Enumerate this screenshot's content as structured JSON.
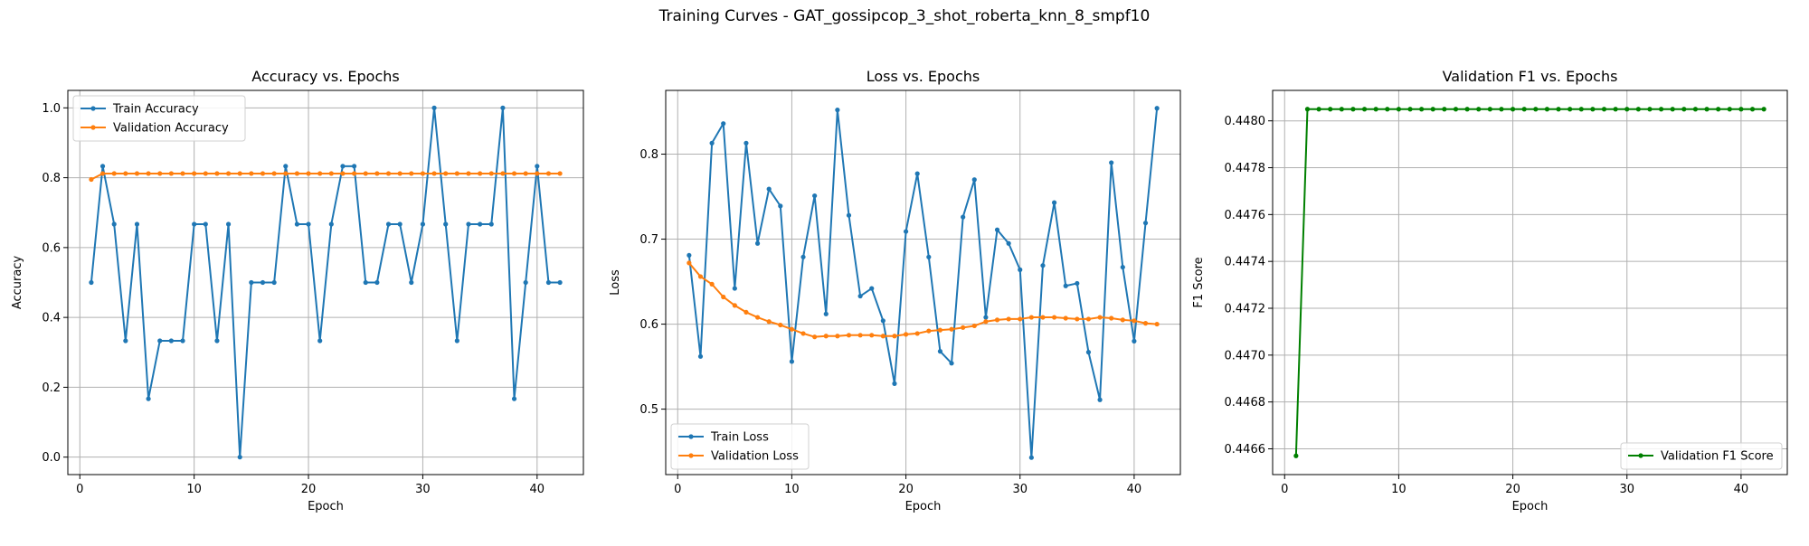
{
  "figure": {
    "suptitle": "Training Curves - GAT_gossipcop_3_shot_roberta_knn_8_smpf10"
  },
  "colors": {
    "train": "#1f77b4",
    "validation": "#ff7f0e",
    "f1": "#008000",
    "grid": "#b0b0b0"
  },
  "chart_data": [
    {
      "type": "line",
      "title": "Accuracy vs. Epochs",
      "xlabel": "Epoch",
      "ylabel": "Accuracy",
      "xlim": [
        -1.05,
        44.05
      ],
      "ylim": [
        -0.05,
        1.05
      ],
      "xticks": [
        0,
        10,
        20,
        30,
        40
      ],
      "yticks": [
        0.0,
        0.2,
        0.4,
        0.6,
        0.8,
        1.0
      ],
      "ytick_labels": [
        "0.0",
        "0.2",
        "0.4",
        "0.6",
        "0.8",
        "1.0"
      ],
      "grid": true,
      "legend": "upper-left",
      "x": [
        1,
        2,
        3,
        4,
        5,
        6,
        7,
        8,
        9,
        10,
        11,
        12,
        13,
        14,
        15,
        16,
        17,
        18,
        19,
        20,
        21,
        22,
        23,
        24,
        25,
        26,
        27,
        28,
        29,
        30,
        31,
        32,
        33,
        34,
        35,
        36,
        37,
        38,
        39,
        40,
        41,
        42
      ],
      "series": [
        {
          "name": "Train Accuracy",
          "color": "#1f77b4",
          "values": [
            0.5,
            0.833,
            0.667,
            0.333,
            0.667,
            0.167,
            0.333,
            0.333,
            0.333,
            0.667,
            0.667,
            0.333,
            0.667,
            0.0,
            0.5,
            0.5,
            0.5,
            0.833,
            0.667,
            0.667,
            0.333,
            0.667,
            0.833,
            0.833,
            0.5,
            0.5,
            0.667,
            0.667,
            0.5,
            0.667,
            1.0,
            0.667,
            0.333,
            0.667,
            0.667,
            0.667,
            1.0,
            0.167,
            0.5,
            0.833,
            0.5,
            0.5
          ]
        },
        {
          "name": "Validation Accuracy",
          "color": "#ff7f0e",
          "values": [
            0.795,
            0.812,
            0.812,
            0.812,
            0.812,
            0.812,
            0.812,
            0.812,
            0.812,
            0.812,
            0.812,
            0.812,
            0.812,
            0.812,
            0.812,
            0.812,
            0.812,
            0.812,
            0.812,
            0.812,
            0.812,
            0.812,
            0.812,
            0.812,
            0.812,
            0.812,
            0.812,
            0.812,
            0.812,
            0.812,
            0.812,
            0.812,
            0.812,
            0.812,
            0.812,
            0.812,
            0.812,
            0.812,
            0.812,
            0.812,
            0.812,
            0.812
          ]
        }
      ]
    },
    {
      "type": "line",
      "title": "Loss vs. Epochs",
      "xlabel": "Epoch",
      "ylabel": "Loss",
      "xlim": [
        -1.05,
        44.05
      ],
      "ylim": [
        0.423,
        0.875
      ],
      "xticks": [
        0,
        10,
        20,
        30,
        40
      ],
      "yticks": [
        0.5,
        0.6,
        0.7,
        0.8
      ],
      "ytick_labels": [
        "0.5",
        "0.6",
        "0.7",
        "0.8"
      ],
      "grid": true,
      "legend": "lower-left",
      "x": [
        1,
        2,
        3,
        4,
        5,
        6,
        7,
        8,
        9,
        10,
        11,
        12,
        13,
        14,
        15,
        16,
        17,
        18,
        19,
        20,
        21,
        22,
        23,
        24,
        25,
        26,
        27,
        28,
        29,
        30,
        31,
        32,
        33,
        34,
        35,
        36,
        37,
        38,
        39,
        40,
        41,
        42
      ],
      "series": [
        {
          "name": "Train Loss",
          "color": "#1f77b4",
          "values": [
            0.681,
            0.562,
            0.813,
            0.836,
            0.642,
            0.813,
            0.695,
            0.759,
            0.739,
            0.556,
            0.679,
            0.751,
            0.612,
            0.852,
            0.728,
            0.633,
            0.642,
            0.604,
            0.53,
            0.709,
            0.777,
            0.679,
            0.568,
            0.554,
            0.726,
            0.77,
            0.608,
            0.711,
            0.695,
            0.664,
            0.443,
            0.669,
            0.743,
            0.645,
            0.648,
            0.567,
            0.511,
            0.79,
            0.667,
            0.58,
            0.719,
            0.854
          ]
        },
        {
          "name": "Validation Loss",
          "color": "#ff7f0e",
          "values": [
            0.672,
            0.656,
            0.647,
            0.632,
            0.622,
            0.614,
            0.608,
            0.603,
            0.599,
            0.594,
            0.589,
            0.585,
            0.586,
            0.586,
            0.587,
            0.587,
            0.587,
            0.586,
            0.586,
            0.588,
            0.589,
            0.592,
            0.593,
            0.594,
            0.596,
            0.598,
            0.603,
            0.605,
            0.606,
            0.606,
            0.608,
            0.608,
            0.608,
            0.607,
            0.606,
            0.606,
            0.608,
            0.607,
            0.605,
            0.604,
            0.601,
            0.6
          ]
        }
      ]
    },
    {
      "type": "line",
      "title": "Validation F1 vs. Epochs",
      "xlabel": "Epoch",
      "ylabel": "F1 Score",
      "xlim": [
        -1.05,
        44.05
      ],
      "ylim": [
        0.44649,
        0.44813
      ],
      "xticks": [
        0,
        10,
        20,
        30,
        40
      ],
      "yticks": [
        0.4466,
        0.4468,
        0.447,
        0.4472,
        0.4474,
        0.4476,
        0.4478,
        0.448
      ],
      "ytick_labels": [
        "0.4466",
        "0.4468",
        "0.4470",
        "0.4472",
        "0.4474",
        "0.4476",
        "0.4478",
        "0.4480"
      ],
      "grid": true,
      "legend": "lower-right",
      "x": [
        1,
        2,
        3,
        4,
        5,
        6,
        7,
        8,
        9,
        10,
        11,
        12,
        13,
        14,
        15,
        16,
        17,
        18,
        19,
        20,
        21,
        22,
        23,
        24,
        25,
        26,
        27,
        28,
        29,
        30,
        31,
        32,
        33,
        34,
        35,
        36,
        37,
        38,
        39,
        40,
        41,
        42
      ],
      "series": [
        {
          "name": "Validation F1 Score",
          "color": "#008000",
          "values": [
            0.44657,
            0.44805,
            0.44805,
            0.44805,
            0.44805,
            0.44805,
            0.44805,
            0.44805,
            0.44805,
            0.44805,
            0.44805,
            0.44805,
            0.44805,
            0.44805,
            0.44805,
            0.44805,
            0.44805,
            0.44805,
            0.44805,
            0.44805,
            0.44805,
            0.44805,
            0.44805,
            0.44805,
            0.44805,
            0.44805,
            0.44805,
            0.44805,
            0.44805,
            0.44805,
            0.44805,
            0.44805,
            0.44805,
            0.44805,
            0.44805,
            0.44805,
            0.44805,
            0.44805,
            0.44805,
            0.44805,
            0.44805,
            0.44805
          ]
        }
      ]
    }
  ]
}
